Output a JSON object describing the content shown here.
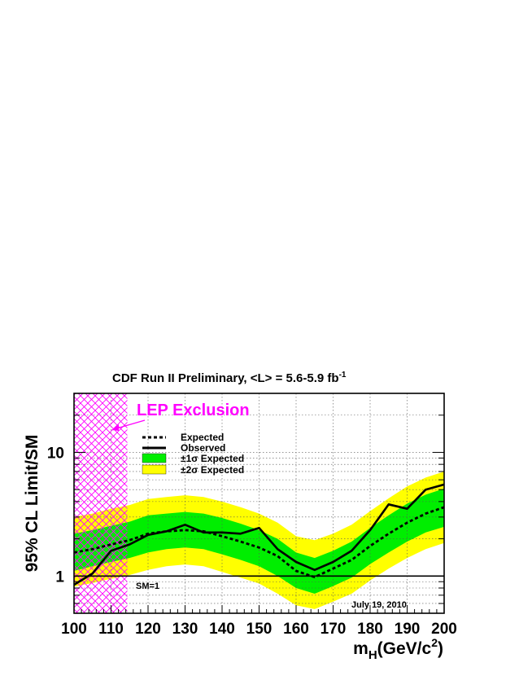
{
  "chart_data": {
    "type": "line",
    "title": "CDF Run II Preliminary, <L> = 5.6-5.9 fb",
    "title_superscript": "-1",
    "xlabel_main": "m",
    "xlabel_sub": "H",
    "xlabel_rest": "(GeV/c",
    "xlabel_sup": "2",
    "xlabel_close": ")",
    "ylabel": "95% CL Limit/SM",
    "xlim": [
      100,
      200
    ],
    "ylim": [
      0.5,
      30
    ],
    "yscale": "log",
    "grid": true,
    "x_ticks": [
      100,
      110,
      120,
      130,
      140,
      150,
      160,
      170,
      180,
      190,
      200
    ],
    "y_tick_labels": [
      {
        "value": 1,
        "label": "1"
      },
      {
        "value": 10,
        "label": "10"
      }
    ],
    "x": [
      100,
      105,
      110,
      115,
      120,
      125,
      130,
      135,
      140,
      145,
      150,
      155,
      160,
      165,
      170,
      175,
      180,
      185,
      190,
      195,
      200
    ],
    "series": [
      {
        "name": "Expected",
        "style": "dashed",
        "color": "#000000",
        "values": [
          1.55,
          1.65,
          1.8,
          1.95,
          2.2,
          2.3,
          2.35,
          2.3,
          2.1,
          1.9,
          1.7,
          1.45,
          1.1,
          0.98,
          1.15,
          1.35,
          1.75,
          2.2,
          2.7,
          3.2,
          3.6
        ]
      },
      {
        "name": "Observed",
        "style": "solid",
        "color": "#000000",
        "values": [
          0.85,
          1.05,
          1.6,
          1.8,
          2.15,
          2.3,
          2.6,
          2.25,
          2.25,
          2.2,
          2.45,
          1.65,
          1.3,
          1.12,
          1.3,
          1.6,
          2.35,
          3.8,
          3.5,
          5.0,
          5.5
        ]
      },
      {
        "name": "±1σ Expected",
        "type": "band",
        "color": "#00ee00",
        "lower": [
          1.1,
          1.2,
          1.3,
          1.4,
          1.55,
          1.65,
          1.7,
          1.65,
          1.5,
          1.35,
          1.2,
          1.0,
          0.8,
          0.72,
          0.83,
          0.97,
          1.25,
          1.55,
          1.9,
          2.25,
          2.5
        ],
        "upper": [
          2.2,
          2.35,
          2.55,
          2.75,
          3.1,
          3.2,
          3.3,
          3.2,
          2.95,
          2.65,
          2.35,
          2.0,
          1.55,
          1.4,
          1.6,
          1.9,
          2.45,
          3.1,
          3.85,
          4.55,
          5.1
        ]
      },
      {
        "name": "±2σ Expected",
        "type": "band",
        "color": "#ffff00",
        "lower": [
          0.82,
          0.88,
          0.95,
          1.02,
          1.12,
          1.2,
          1.24,
          1.2,
          1.08,
          0.97,
          0.87,
          0.72,
          0.58,
          0.54,
          0.62,
          0.72,
          0.92,
          1.15,
          1.4,
          1.65,
          1.85
        ],
        "upper": [
          3.0,
          3.2,
          3.5,
          3.75,
          4.2,
          4.35,
          4.5,
          4.35,
          4.0,
          3.6,
          3.2,
          2.7,
          2.1,
          1.95,
          2.2,
          2.6,
          3.35,
          4.25,
          5.3,
          6.25,
          7.0
        ]
      }
    ],
    "annotations": {
      "lep_label": "LEP Exclusion",
      "lep_range": [
        100,
        114.4
      ],
      "sm_line_value": 1,
      "sm_label": "SM=1",
      "date_label": "July 19, 2010"
    },
    "legend": {
      "placement": "top-left",
      "entries": [
        {
          "label": "Expected",
          "kind": "dashed"
        },
        {
          "label": "Observed",
          "kind": "solid"
        },
        {
          "label": "±1σ Expected",
          "kind": "box",
          "color": "#00ee00"
        },
        {
          "label": "±2σ Expected",
          "kind": "box",
          "color": "#ffff00"
        }
      ]
    },
    "colors": {
      "lep_hatch": "#ff00ff",
      "one_sigma": "#00ee00",
      "two_sigma": "#ffff00"
    }
  }
}
